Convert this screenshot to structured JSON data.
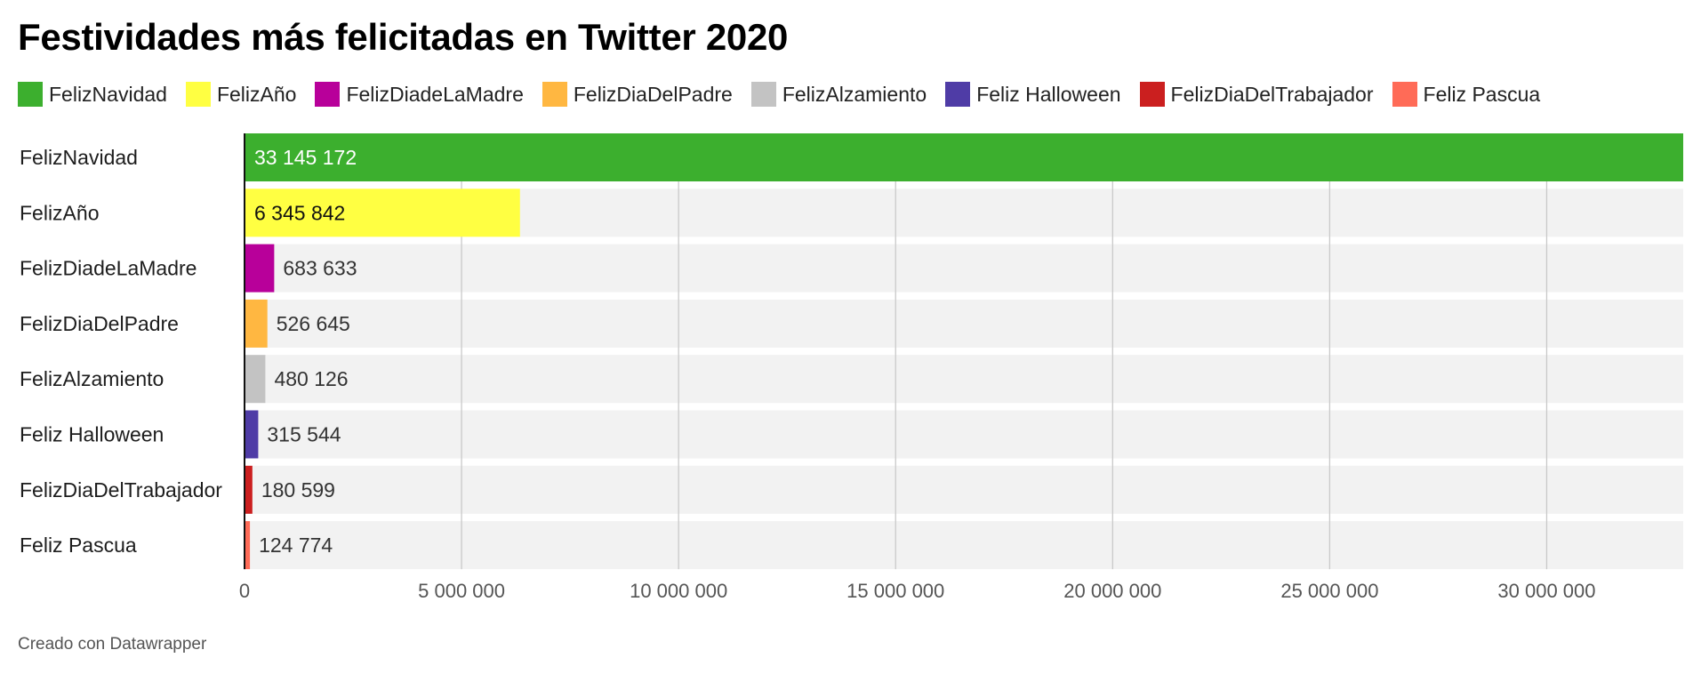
{
  "title": "Festividades más felicitadas en Twitter 2020",
  "footer": "Creado con Datawrapper",
  "chart_data": {
    "type": "bar",
    "orientation": "horizontal",
    "title": "Festividades más felicitadas en Twitter 2020",
    "xlabel": "",
    "ylabel": "",
    "xlim": [
      0,
      33145172
    ],
    "x_ticks": [
      0,
      5000000,
      10000000,
      15000000,
      20000000,
      25000000,
      30000000
    ],
    "x_tick_labels": [
      "0",
      "5 000 000",
      "10 000 000",
      "15 000 000",
      "20 000 000",
      "25 000 000",
      "30 000 000"
    ],
    "grid": true,
    "legend_position": "top",
    "categories": [
      "FelizNavidad",
      "FelizAño",
      "FelizDiadeLaMadre",
      "FelizDiaDelPadre",
      "FelizAlzamiento",
      "Feliz Halloween",
      "FelizDiaDelTrabajador",
      "Feliz Pascua"
    ],
    "values": [
      33145172,
      6345842,
      683633,
      526645,
      480126,
      315544,
      180599,
      124774
    ],
    "value_labels": [
      "33 145 172",
      "6 345 842",
      "683 633",
      "526 645",
      "480 126",
      "315 544",
      "180 599",
      "124 774"
    ],
    "colors": [
      "#3caf2e",
      "#ffff42",
      "#b8009a",
      "#ffb741",
      "#c3c3c3",
      "#4f3ca6",
      "#cb1f1f",
      "#ff6b57"
    ],
    "legend": [
      {
        "label": "FelizNavidad",
        "color": "#3caf2e"
      },
      {
        "label": "FelizAño",
        "color": "#ffff42"
      },
      {
        "label": "FelizDiadeLaMadre",
        "color": "#b8009a"
      },
      {
        "label": "FelizDiaDelPadre",
        "color": "#ffb741"
      },
      {
        "label": "FelizAlzamiento",
        "color": "#c3c3c3"
      },
      {
        "label": "Feliz Halloween",
        "color": "#4f3ca6"
      },
      {
        "label": "FelizDiaDelTrabajador",
        "color": "#cb1f1f"
      },
      {
        "label": "Feliz Pascua",
        "color": "#ff6b57"
      }
    ]
  }
}
